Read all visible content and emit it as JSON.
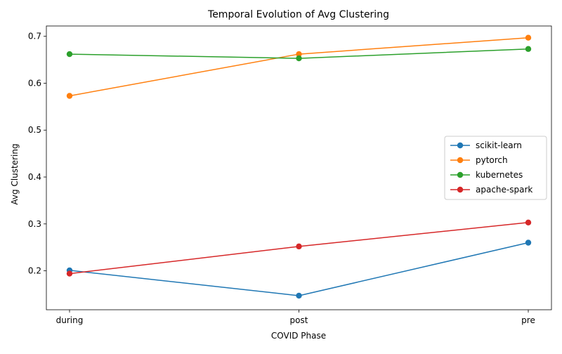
{
  "chart_data": {
    "type": "line",
    "title": "Temporal Evolution of Avg Clustering",
    "xlabel": "COVID Phase",
    "ylabel": "Avg Clustering",
    "categories": [
      "during",
      "post",
      "pre"
    ],
    "ylim": [
      0.117,
      0.722
    ],
    "yticks": [
      0.2,
      0.3,
      0.4,
      0.5,
      0.6,
      0.7
    ],
    "ytick_labels": [
      "0.2",
      "0.3",
      "0.4",
      "0.5",
      "0.6",
      "0.7"
    ],
    "grid": false,
    "legend_position": "center-right",
    "series": [
      {
        "name": "scikit-learn",
        "color": "#1f77b4",
        "marker": "circle",
        "values": [
          0.201,
          0.147,
          0.26
        ]
      },
      {
        "name": "pytorch",
        "color": "#ff7f0e",
        "marker": "circle",
        "values": [
          0.573,
          0.662,
          0.697
        ]
      },
      {
        "name": "kubernetes",
        "color": "#2ca02c",
        "marker": "circle",
        "values": [
          0.662,
          0.653,
          0.673
        ]
      },
      {
        "name": "apache-spark",
        "color": "#d62728",
        "marker": "circle",
        "values": [
          0.194,
          0.252,
          0.303
        ]
      }
    ]
  }
}
